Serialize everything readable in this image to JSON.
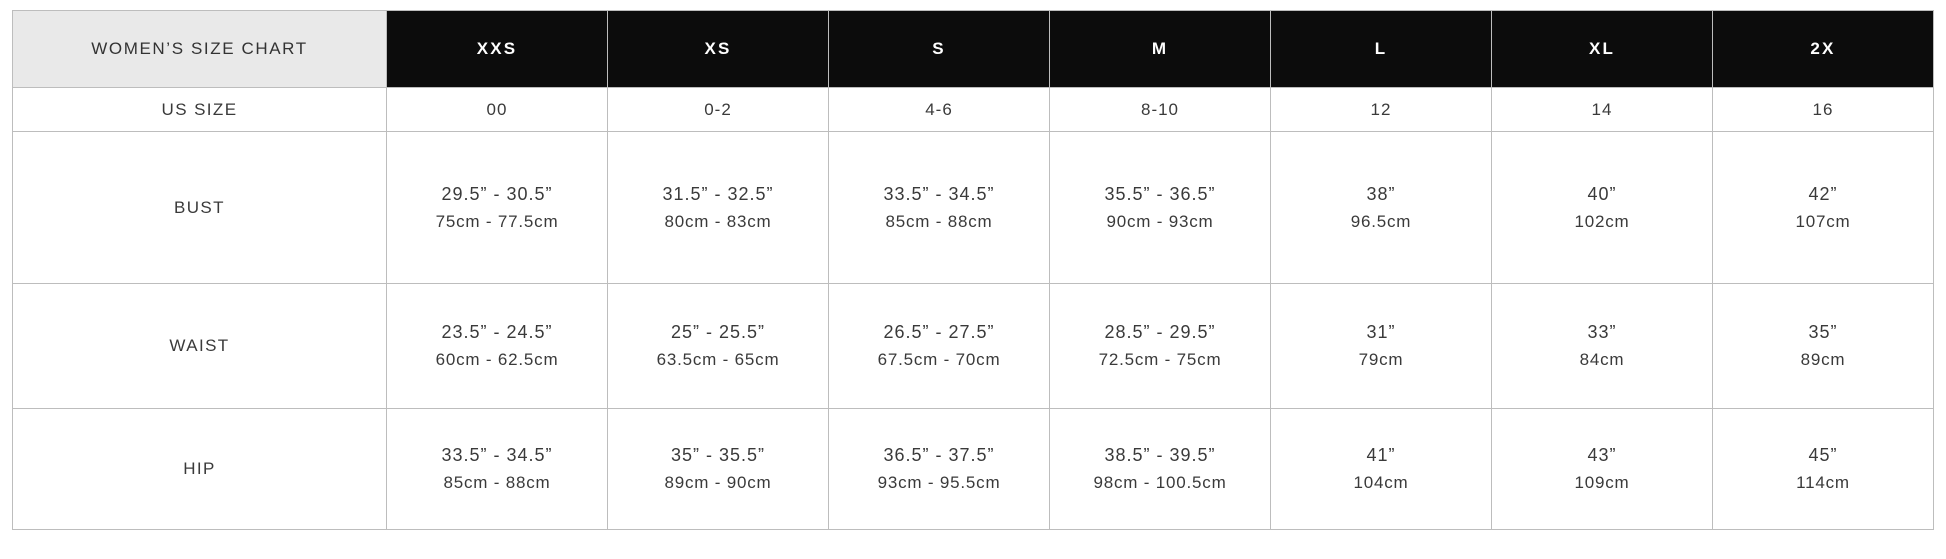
{
  "table": {
    "corner_label": "WOMEN’S SIZE CHART",
    "size_headers": [
      "XXS",
      "XS",
      "S",
      "M",
      "L",
      "XL",
      "2X"
    ],
    "us_size_row": {
      "label": "US SIZE",
      "values": [
        "00",
        "0-2",
        "4-6",
        "8-10",
        "12",
        "14",
        "16"
      ]
    },
    "measurement_rows": [
      {
        "label": "BUST",
        "cells": [
          {
            "inches": "29.5” - 30.5”",
            "cm": "75cm - 77.5cm"
          },
          {
            "inches": "31.5” - 32.5”",
            "cm": "80cm - 83cm"
          },
          {
            "inches": "33.5” - 34.5”",
            "cm": "85cm - 88cm"
          },
          {
            "inches": "35.5” - 36.5”",
            "cm": "90cm - 93cm"
          },
          {
            "inches": "38”",
            "cm": "96.5cm"
          },
          {
            "inches": "40”",
            "cm": "102cm"
          },
          {
            "inches": "42”",
            "cm": "107cm"
          }
        ]
      },
      {
        "label": "WAIST",
        "cells": [
          {
            "inches": "23.5” - 24.5”",
            "cm": "60cm - 62.5cm"
          },
          {
            "inches": "25” - 25.5”",
            "cm": "63.5cm - 65cm"
          },
          {
            "inches": "26.5” - 27.5”",
            "cm": "67.5cm - 70cm"
          },
          {
            "inches": "28.5” - 29.5”",
            "cm": "72.5cm - 75cm"
          },
          {
            "inches": "31”",
            "cm": "79cm"
          },
          {
            "inches": "33”",
            "cm": "84cm"
          },
          {
            "inches": "35”",
            "cm": "89cm"
          }
        ]
      },
      {
        "label": "HIP",
        "cells": [
          {
            "inches": "33.5” - 34.5”",
            "cm": "85cm - 88cm"
          },
          {
            "inches": "35” - 35.5”",
            "cm": "89cm - 90cm"
          },
          {
            "inches": "36.5” - 37.5”",
            "cm": "93cm - 95.5cm"
          },
          {
            "inches": "38.5” - 39.5”",
            "cm": "98cm - 100.5cm"
          },
          {
            "inches": "41”",
            "cm": "104cm"
          },
          {
            "inches": "43”",
            "cm": "109cm"
          },
          {
            "inches": "45”",
            "cm": "114cm"
          }
        ]
      }
    ]
  },
  "colors": {
    "header_bg": "#0c0c0c",
    "header_text": "#ffffff",
    "corner_bg": "#e9e9e9",
    "grid_line": "#bdbdbd",
    "body_text": "#3a3a3a",
    "page_bg": "#ffffff"
  }
}
